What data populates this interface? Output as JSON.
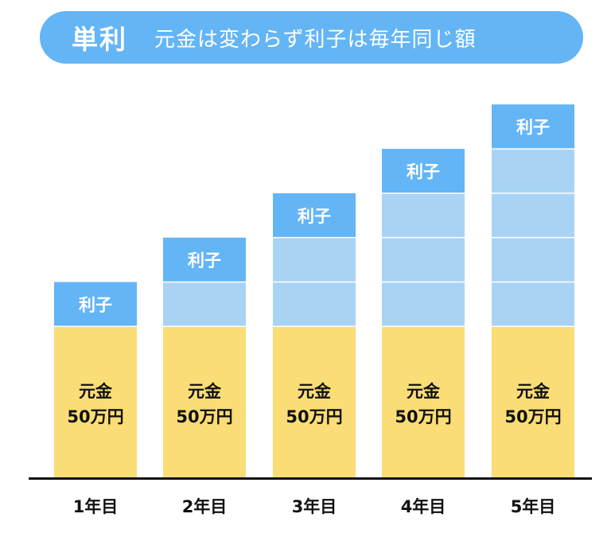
{
  "header": {
    "title": "単利",
    "subtitle": "元金は変わらず利子は毎年同じ額"
  },
  "colors": {
    "header_bg": "#64b5f6",
    "principal": "#fadd77",
    "interest_current": "#64b5f6",
    "interest_past": "#a9d3f4",
    "axis": "#111111"
  },
  "chart_data": {
    "type": "bar",
    "stacked": true,
    "categories": [
      "1年目",
      "2年目",
      "3年目",
      "4年目",
      "5年目"
    ],
    "principal": {
      "label_line1": "元金",
      "label_line2": "50万円",
      "units": 3.4
    },
    "interest": {
      "label": "利子",
      "count_per_year": [
        1,
        2,
        3,
        4,
        5
      ]
    }
  }
}
